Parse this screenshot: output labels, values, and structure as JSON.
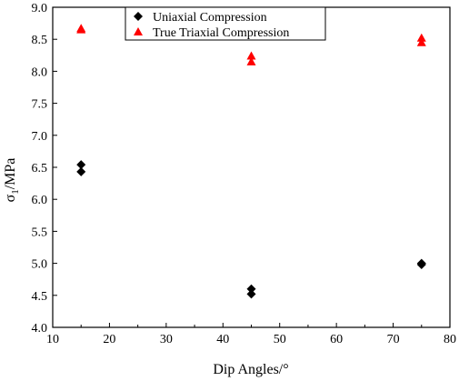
{
  "chart_data": {
    "type": "scatter",
    "xlabel": "Dip Angles/°",
    "ylabel_main": "σ",
    "ylabel_sub": "1",
    "ylabel_unit": "/MPa",
    "xlim": [
      10,
      80
    ],
    "ylim": [
      4.0,
      9.0
    ],
    "x_ticks": [
      10,
      20,
      30,
      40,
      50,
      60,
      70,
      80
    ],
    "y_ticks": [
      "4.0",
      "4.5",
      "5.0",
      "5.5",
      "6.0",
      "6.5",
      "7.0",
      "7.5",
      "8.0",
      "8.5",
      "9.0"
    ],
    "grid": false,
    "legend_position": "top-center",
    "series": [
      {
        "name": "Uniaxial Compression",
        "marker": "diamond",
        "color": "#000000",
        "points": [
          {
            "x": 15,
            "y": 6.54
          },
          {
            "x": 15,
            "y": 6.43
          },
          {
            "x": 45,
            "y": 4.6
          },
          {
            "x": 45,
            "y": 4.52
          },
          {
            "x": 75,
            "y": 5.0
          },
          {
            "x": 75,
            "y": 4.98
          }
        ]
      },
      {
        "name": "True Triaxial Compression",
        "marker": "triangle",
        "color": "#ff0000",
        "points": [
          {
            "x": 15,
            "y": 8.67
          },
          {
            "x": 15,
            "y": 8.65
          },
          {
            "x": 45,
            "y": 8.24
          },
          {
            "x": 45,
            "y": 8.15
          },
          {
            "x": 75,
            "y": 8.52
          },
          {
            "x": 75,
            "y": 8.45
          }
        ]
      }
    ]
  }
}
